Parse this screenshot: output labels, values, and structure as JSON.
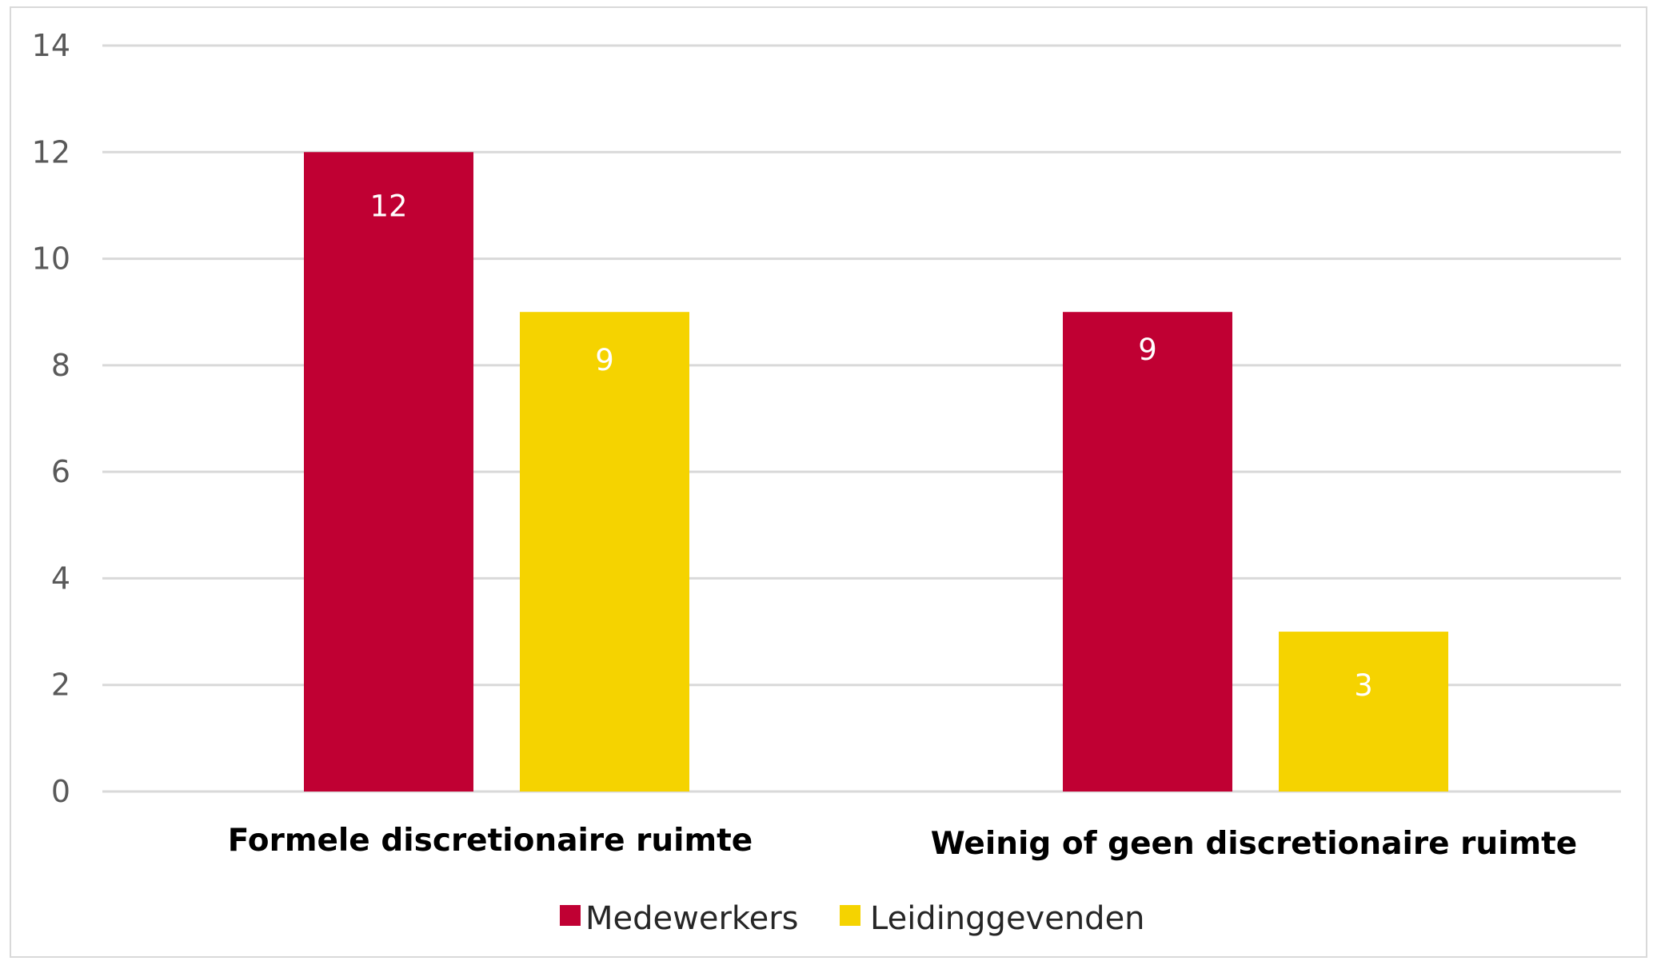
{
  "chart_data": {
    "type": "bar",
    "categories": [
      "Formele discretionaire ruimte",
      "Weinig of geen discretionaire ruimte"
    ],
    "series": [
      {
        "name": "Medewerkers",
        "values": [
          12,
          9
        ],
        "color": "#c00033"
      },
      {
        "name": "Leidinggevenden",
        "values": [
          9,
          3
        ],
        "color": "#f5d300"
      }
    ],
    "yticks": [
      0,
      2,
      4,
      6,
      8,
      10,
      12,
      14
    ],
    "ylim": [
      0,
      14
    ],
    "grid": true,
    "legend_position": "bottom",
    "data_labels": true
  }
}
